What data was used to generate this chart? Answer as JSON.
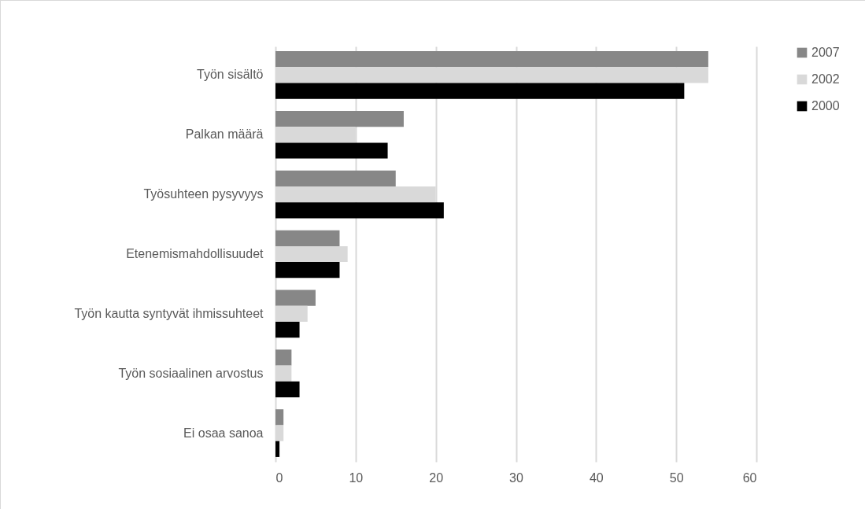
{
  "chart_data": {
    "type": "bar",
    "orientation": "horizontal",
    "categories": [
      "Työn sisältö",
      "Palkan määrä",
      "Työsuhteen pysyvyys",
      "Etenemismahdollisuudet",
      "Työn kautta syntyvät ihmissuhteet",
      "Työn sosiaalinen arvostus",
      "Ei osaa sanoa"
    ],
    "series": [
      {
        "name": "2007",
        "color": "#878787",
        "values": [
          54,
          16,
          15,
          8,
          5,
          2,
          1
        ]
      },
      {
        "name": "2002",
        "color": "#d9d9d9",
        "values": [
          54,
          10,
          20,
          9,
          4,
          2,
          1
        ]
      },
      {
        "name": "2000",
        "color": "#000000",
        "values": [
          51,
          14,
          21,
          8,
          3,
          3,
          0.5
        ]
      }
    ],
    "xlim": [
      0,
      60
    ],
    "xticks": [
      0,
      10,
      20,
      30,
      40,
      50,
      60
    ],
    "grid": "x",
    "legend": "right"
  }
}
